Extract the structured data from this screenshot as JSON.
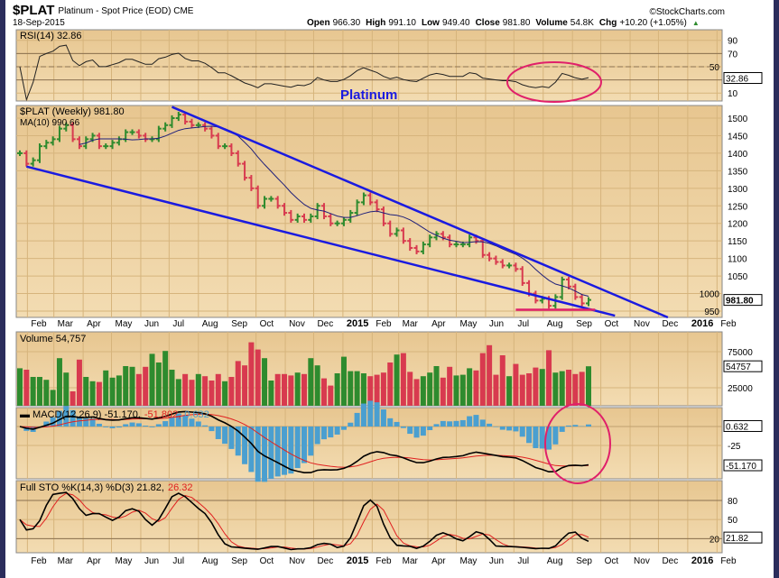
{
  "header": {
    "symbol": "$PLAT",
    "name": "Platinum",
    "desc": "- Spot Price (EOD)",
    "exchange": "CME",
    "date": "18-Sep-2015",
    "copyright": "©StockCharts.com",
    "quote": [
      {
        "k": "Open",
        "v": "966.30"
      },
      {
        "k": "High",
        "v": "991.10"
      },
      {
        "k": "Low",
        "v": "949.40"
      },
      {
        "k": "Close",
        "v": "981.80"
      },
      {
        "k": "Volume",
        "v": "54.8K"
      },
      {
        "k": "Chg",
        "v": "+10.20 (+1.05%)"
      }
    ]
  },
  "annotation_title": "Platinum",
  "colors": {
    "up": "#2e8b2e",
    "down": "#d83a4f",
    "ma": "#20207a",
    "trend": "#1a1ae0",
    "highlight": "#e0206a",
    "hist": "#4a9fd0",
    "signal": "#e02020",
    "bg_top": "#e7c690",
    "bg_bottom": "#f3dcb2"
  },
  "chart_data": [
    {
      "type": "ohlc",
      "panel": "price",
      "legend": "$PLAT (Weekly) 981.80",
      "ma_legend": "MA(10) 990.66",
      "last_label": "981.80",
      "ylim": [
        932,
        1536
      ],
      "yticks": [
        950,
        1000,
        1050,
        1100,
        1150,
        1200,
        1250,
        1300,
        1350,
        1400,
        1450,
        1500
      ],
      "x_ticks": [
        [
          "Feb",
          "2014-02-01"
        ],
        [
          "Mar",
          "2014-03-01"
        ],
        [
          "Apr",
          "2014-04-01"
        ],
        [
          "May",
          "2014-05-01"
        ],
        [
          "Jun",
          "2014-06-01"
        ],
        [
          "Jul",
          "2014-07-01"
        ],
        [
          "Aug",
          "2014-08-01"
        ],
        [
          "Sep",
          "2014-09-01"
        ],
        [
          "Oct",
          "2014-10-01"
        ],
        [
          "Nov",
          "2014-11-01"
        ],
        [
          "Dec",
          "2014-12-01"
        ],
        [
          "2015",
          "2015-01-01"
        ],
        [
          "Feb",
          "2015-02-01"
        ],
        [
          "Mar",
          "2015-03-01"
        ],
        [
          "Apr",
          "2015-04-01"
        ],
        [
          "May",
          "2015-05-01"
        ],
        [
          "Jun",
          "2015-06-01"
        ],
        [
          "Jul",
          "2015-07-01"
        ],
        [
          "Aug",
          "2015-08-01"
        ],
        [
          "Sep",
          "2015-09-01"
        ],
        [
          "Oct",
          "2015-10-01"
        ],
        [
          "Nov",
          "2015-11-01"
        ],
        [
          "Dec",
          "2015-12-01"
        ],
        [
          "2016",
          "2016-01-01"
        ],
        [
          "Feb",
          "2016-02-01"
        ]
      ],
      "weeks": [
        [
          "2014-01-24",
          1400,
          52000
        ],
        [
          "2014-01-31",
          1370,
          50000
        ],
        [
          "2014-02-07",
          1380,
          40000
        ],
        [
          "2014-02-14",
          1420,
          40000
        ],
        [
          "2014-02-21",
          1430,
          36000
        ],
        [
          "2014-02-28",
          1440,
          22000
        ],
        [
          "2014-03-07",
          1470,
          66000
        ],
        [
          "2014-03-14",
          1480,
          46000
        ],
        [
          "2014-03-21",
          1440,
          20000
        ],
        [
          "2014-03-28",
          1420,
          64000
        ],
        [
          "2014-04-04",
          1440,
          40000
        ],
        [
          "2014-04-11",
          1450,
          34000
        ],
        [
          "2014-04-18",
          1420,
          33000
        ],
        [
          "2014-04-25",
          1420,
          49000
        ],
        [
          "2014-05-02",
          1430,
          39000
        ],
        [
          "2014-05-09",
          1440,
          42000
        ],
        [
          "2014-05-16",
          1460,
          55000
        ],
        [
          "2014-05-23",
          1460,
          54000
        ],
        [
          "2014-05-30",
          1450,
          44000
        ],
        [
          "2014-06-06",
          1440,
          54000
        ],
        [
          "2014-06-13",
          1440,
          72000
        ],
        [
          "2014-06-20",
          1470,
          60000
        ],
        [
          "2014-06-27",
          1480,
          76000
        ],
        [
          "2014-07-04",
          1500,
          50000
        ],
        [
          "2014-07-11",
          1510,
          37000
        ],
        [
          "2014-07-18",
          1490,
          44000
        ],
        [
          "2014-07-25",
          1480,
          36000
        ],
        [
          "2014-08-01",
          1480,
          44000
        ],
        [
          "2014-08-08",
          1470,
          41000
        ],
        [
          "2014-08-15",
          1450,
          35000
        ],
        [
          "2014-08-22",
          1420,
          44000
        ],
        [
          "2014-08-29",
          1420,
          34000
        ],
        [
          "2014-09-05",
          1400,
          40000
        ],
        [
          "2014-09-12",
          1370,
          62000
        ],
        [
          "2014-09-19",
          1330,
          56000
        ],
        [
          "2014-09-26",
          1300,
          88000
        ],
        [
          "2014-10-03",
          1250,
          78000
        ],
        [
          "2014-10-10",
          1270,
          66000
        ],
        [
          "2014-10-17",
          1270,
          35000
        ],
        [
          "2014-10-24",
          1250,
          44000
        ],
        [
          "2014-10-31",
          1230,
          44000
        ],
        [
          "2014-11-07",
          1210,
          42000
        ],
        [
          "2014-11-14",
          1220,
          46000
        ],
        [
          "2014-11-21",
          1210,
          44000
        ],
        [
          "2014-11-28",
          1220,
          66000
        ],
        [
          "2014-12-05",
          1250,
          56000
        ],
        [
          "2014-12-12",
          1220,
          38000
        ],
        [
          "2014-12-19",
          1200,
          28000
        ],
        [
          "2014-12-26",
          1200,
          45000
        ],
        [
          "2015-01-02",
          1210,
          68000
        ],
        [
          "2015-01-09",
          1230,
          48000
        ],
        [
          "2015-01-16",
          1260,
          48000
        ],
        [
          "2015-01-23",
          1280,
          45000
        ],
        [
          "2015-01-30",
          1260,
          41000
        ],
        [
          "2015-02-06",
          1240,
          43000
        ],
        [
          "2015-02-13",
          1200,
          46000
        ],
        [
          "2015-02-20",
          1170,
          60000
        ],
        [
          "2015-02-27",
          1180,
          71000
        ],
        [
          "2015-03-06",
          1150,
          73000
        ],
        [
          "2015-03-13",
          1130,
          47000
        ],
        [
          "2015-03-20",
          1120,
          37000
        ],
        [
          "2015-03-27",
          1140,
          41000
        ],
        [
          "2015-04-03",
          1160,
          46000
        ],
        [
          "2015-04-10",
          1170,
          55000
        ],
        [
          "2015-04-17",
          1160,
          39000
        ],
        [
          "2015-04-24",
          1140,
          54000
        ],
        [
          "2015-05-01",
          1140,
          42000
        ],
        [
          "2015-05-08",
          1140,
          43000
        ],
        [
          "2015-05-15",
          1160,
          52000
        ],
        [
          "2015-05-22",
          1150,
          49000
        ],
        [
          "2015-05-29",
          1110,
          73000
        ],
        [
          "2015-06-05",
          1100,
          84000
        ],
        [
          "2015-06-12",
          1090,
          43000
        ],
        [
          "2015-06-19",
          1080,
          70000
        ],
        [
          "2015-06-26",
          1080,
          41000
        ],
        [
          "2015-07-03",
          1070,
          58000
        ],
        [
          "2015-07-10",
          1030,
          43000
        ],
        [
          "2015-07-17",
          1000,
          45000
        ],
        [
          "2015-07-24",
          980,
          53000
        ],
        [
          "2015-07-31",
          985,
          51000
        ],
        [
          "2015-08-07",
          965,
          77000
        ],
        [
          "2015-08-14",
          990,
          46000
        ],
        [
          "2015-08-21",
          1040,
          48000
        ],
        [
          "2015-08-28",
          1020,
          50000
        ],
        [
          "2015-09-04",
          990,
          44000
        ],
        [
          "2015-09-11",
          972,
          47000
        ],
        [
          "2015-09-18",
          981.8,
          54757
        ]
      ],
      "trendlines": [
        {
          "from": [
            "2014-07-04",
            1532
          ],
          "to": [
            "2015-12-11",
            932
          ]
        },
        {
          "from": [
            "2014-01-31",
            1362
          ],
          "to": [
            "2015-10-16",
            937
          ]
        },
        {
          "from": [
            "2015-07-03",
            954
          ],
          "to": [
            "2015-09-25",
            954
          ],
          "color": "highlight"
        }
      ]
    },
    {
      "type": "line",
      "panel": "rsi",
      "legend": "RSI(14) 32.86",
      "last_label": "32.86",
      "ylim": [
        -2,
        106
      ],
      "yticks": [
        10,
        50,
        70,
        90
      ],
      "levels": [
        30,
        70
      ]
    },
    {
      "type": "bar",
      "panel": "volume",
      "legend": "Volume 54,757",
      "last_label": "54757",
      "ylim": [
        0,
        102500
      ],
      "yticks": [
        25000,
        75000
      ]
    },
    {
      "type": "line",
      "panel": "macd",
      "legend": {
        "main": "MACD(12,26,9) -51.170,",
        "signal": "-51.802,",
        "hist": "0.632"
      },
      "labels": [
        "0.632",
        "-51.170"
      ],
      "ylim": [
        -69,
        25
      ],
      "yticks": [
        -25
      ]
    },
    {
      "type": "line",
      "panel": "sto",
      "legend": {
        "main": "Full STO %K(14,3) %D(3) 21.82,",
        "d": "26.32"
      },
      "last_label": "21.82",
      "ylim": [
        -2,
        111
      ],
      "yticks": [
        20,
        50,
        80
      ],
      "levels": [
        20,
        80
      ]
    }
  ]
}
